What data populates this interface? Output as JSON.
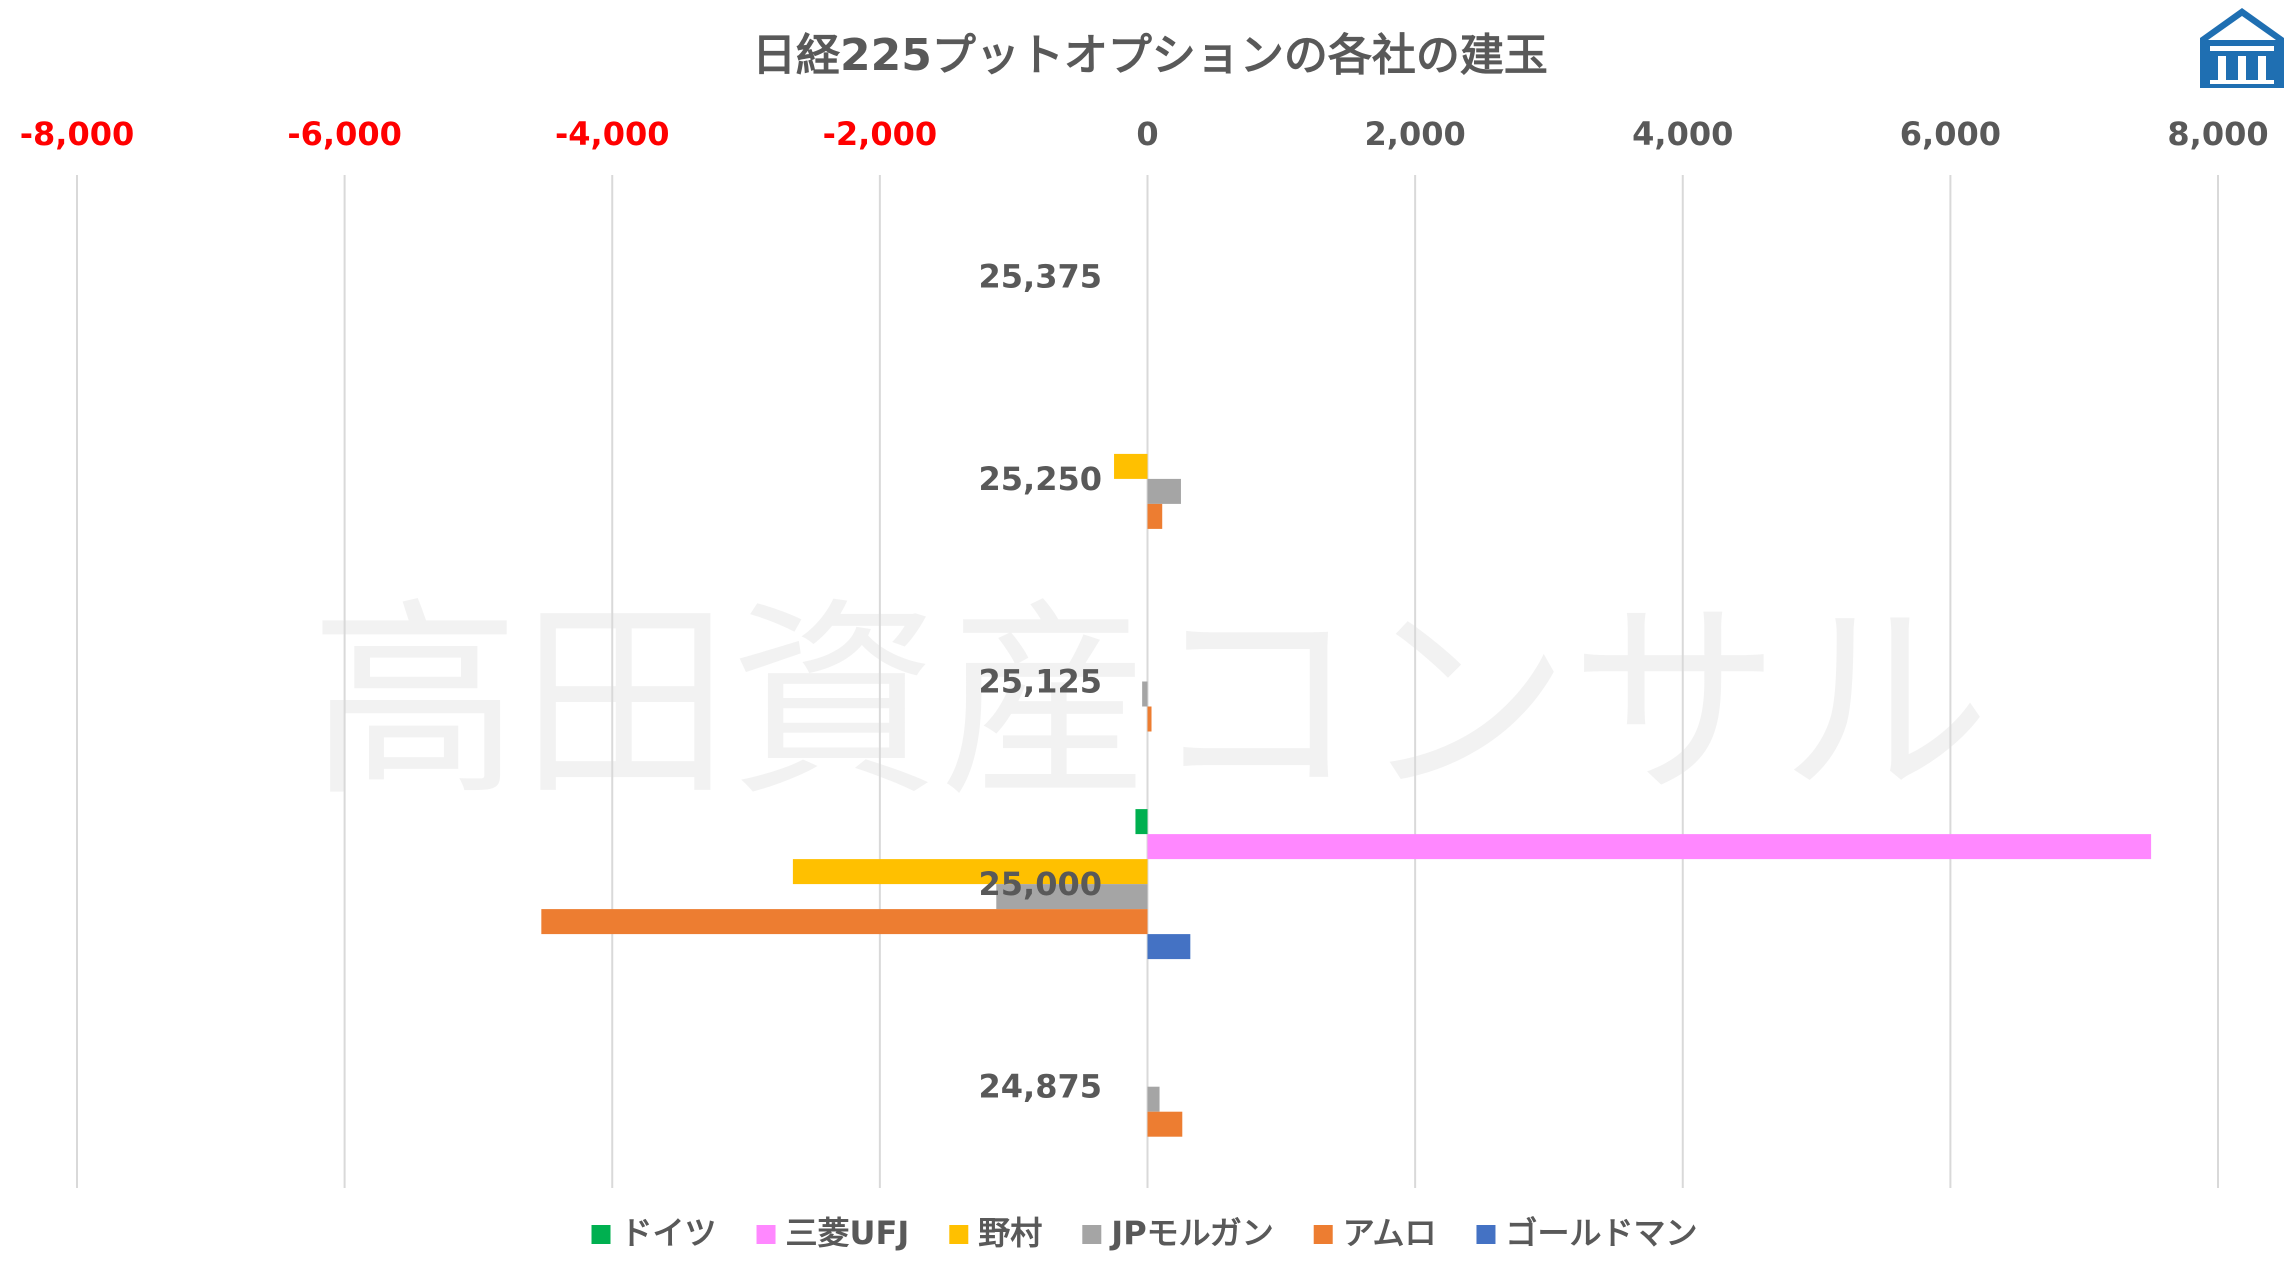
{
  "chart_data": {
    "type": "bar",
    "orientation": "horizontal",
    "title": "日経225プットオプションの各社の建玉",
    "watermark": "高田資産コンサル",
    "xlim": [
      -8000,
      8000
    ],
    "xticks": [
      "-8,000",
      "-6,000",
      "-4,000",
      "-2,000",
      "0",
      "2,000",
      "4,000",
      "6,000",
      "8,000"
    ],
    "xtick_values": [
      -8000,
      -6000,
      -4000,
      -2000,
      0,
      2000,
      4000,
      6000,
      8000
    ],
    "negative_tick_color": "#ff0000",
    "positive_tick_color": "#595959",
    "categories": [
      "25,375",
      "25,250",
      "25,125",
      "25,000",
      "24,875"
    ],
    "series": [
      {
        "name": "ドイツ",
        "color": "#00b050",
        "values": [
          0,
          0,
          0,
          -90,
          0
        ]
      },
      {
        "name": "三菱UFJ",
        "color": "#ff88ff",
        "values": [
          0,
          0,
          0,
          7500,
          0
        ]
      },
      {
        "name": "野村",
        "color": "#ffc000",
        "values": [
          0,
          -250,
          0,
          -2650,
          0
        ]
      },
      {
        "name": "JPモルガン",
        "color": "#a5a5a5",
        "values": [
          0,
          250,
          -40,
          -1130,
          90
        ]
      },
      {
        "name": "アムロ",
        "color": "#ed7d31",
        "values": [
          0,
          110,
          30,
          -4530,
          260
        ]
      },
      {
        "name": "ゴールドマン",
        "color": "#4472c4",
        "values": [
          0,
          0,
          0,
          320,
          0
        ]
      }
    ],
    "grid": true,
    "legend_position": "bottom"
  },
  "logo": {
    "name": "pillar-house-icon",
    "color": "#1f6fb2"
  }
}
